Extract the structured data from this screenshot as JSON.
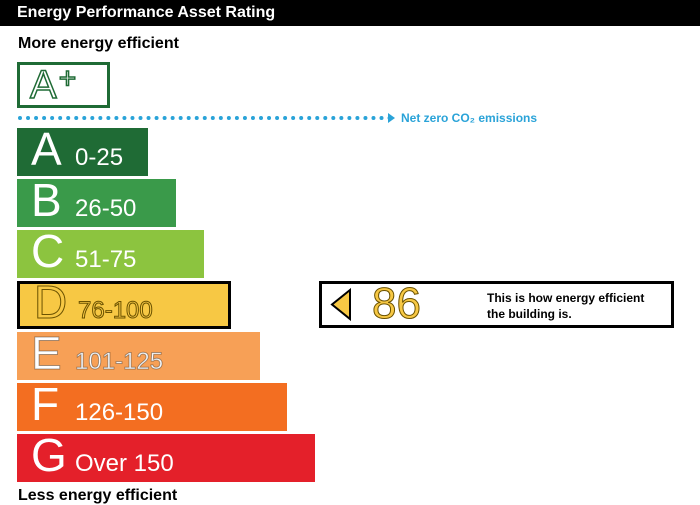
{
  "header": {
    "title": "Energy Performance Asset Rating"
  },
  "labels": {
    "top": "More energy efficient",
    "bottom": "Less energy efficient"
  },
  "aplus": {
    "letter": "A",
    "plus": "+"
  },
  "netzero": {
    "text": "Net zero CO₂ emissions",
    "color": "#2aa3d8"
  },
  "chart_data": {
    "type": "bar",
    "bands": [
      {
        "letter": "A",
        "range": "0-25",
        "color": "#1f6b35"
      },
      {
        "letter": "B",
        "range": "26-50",
        "color": "#3a9a4a"
      },
      {
        "letter": "C",
        "range": "51-75",
        "color": "#8cc43f"
      },
      {
        "letter": "D",
        "range": "76-100",
        "color": "#f7c844"
      },
      {
        "letter": "E",
        "range": "101-125",
        "color": "#f7a056"
      },
      {
        "letter": "F",
        "range": "126-150",
        "color": "#f36e21"
      },
      {
        "letter": "G",
        "range": "Over 150",
        "color": "#e4202a"
      }
    ],
    "current_rating": {
      "value": "86",
      "band": "D",
      "text_line1": "This is how energy efficient",
      "text_line2": "the building is."
    }
  }
}
